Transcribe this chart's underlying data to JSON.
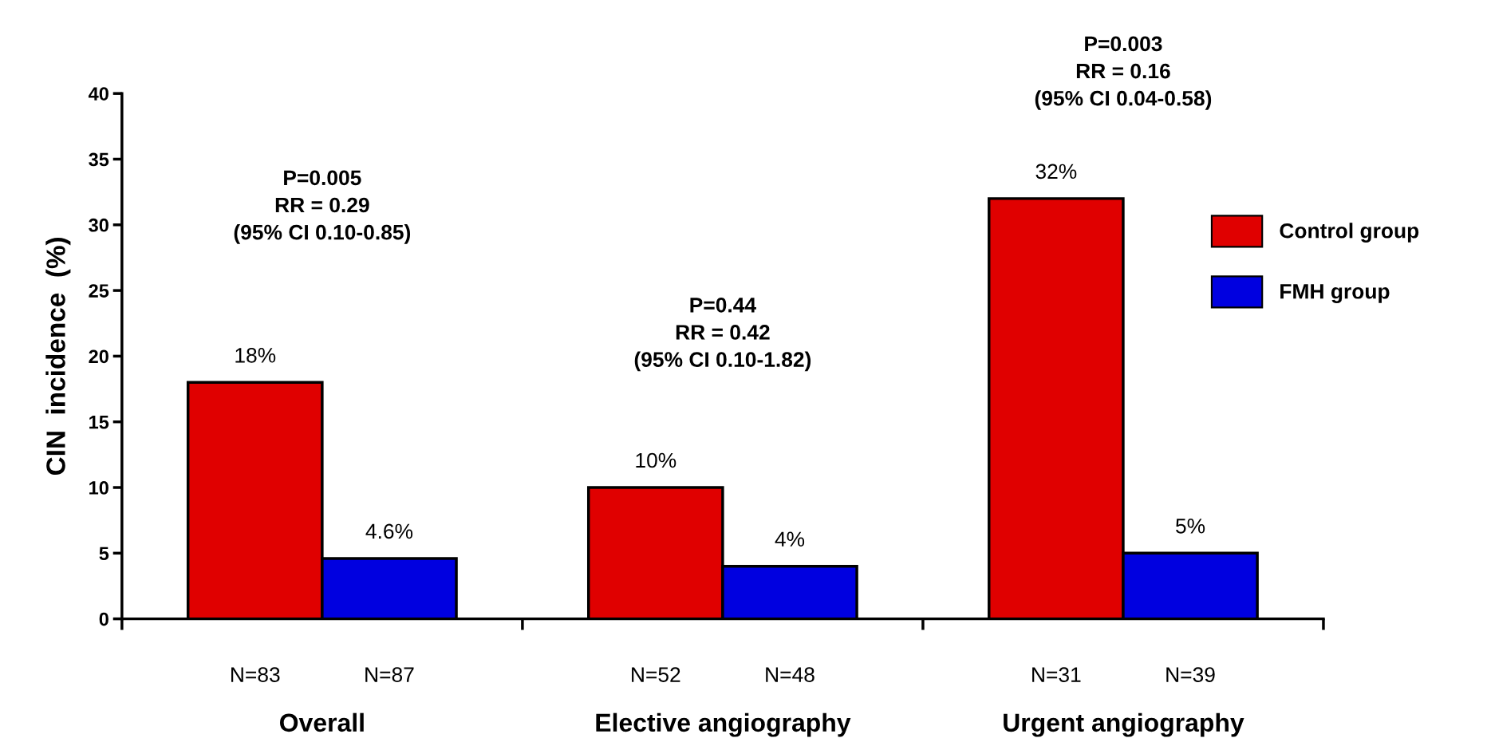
{
  "chart_data": {
    "type": "bar",
    "ylabel": "CIN  incidence  (%)",
    "categories": [
      "Overall",
      "Elective angiography",
      "Urgent angiography"
    ],
    "series": [
      {
        "name": "Control group",
        "color": "#e00000",
        "values": [
          18,
          10,
          32
        ],
        "value_labels": [
          "18%",
          "10%",
          "32%"
        ]
      },
      {
        "name": "FMH group",
        "color": "#0000e0",
        "values": [
          4.6,
          4,
          5
        ],
        "value_labels": [
          "4.6%",
          "4%",
          "5%"
        ]
      }
    ],
    "ylim": [
      0,
      40
    ],
    "yticks": [
      0,
      5,
      10,
      15,
      20,
      25,
      30,
      35,
      40
    ],
    "grid": false,
    "legend": "right",
    "annotations": [
      "P=0.005\nRR = 0.29\n(95% CI 0.10-0.85)",
      "P=0.44\nRR = 0.42\n(95% CI 0.10-1.82)",
      "P=0.003\nRR = 0.16\n(95% CI 0.04-0.58)",
      "N=83",
      "N=87",
      "N=52",
      "N=48",
      "N=31",
      "N=39"
    ]
  }
}
